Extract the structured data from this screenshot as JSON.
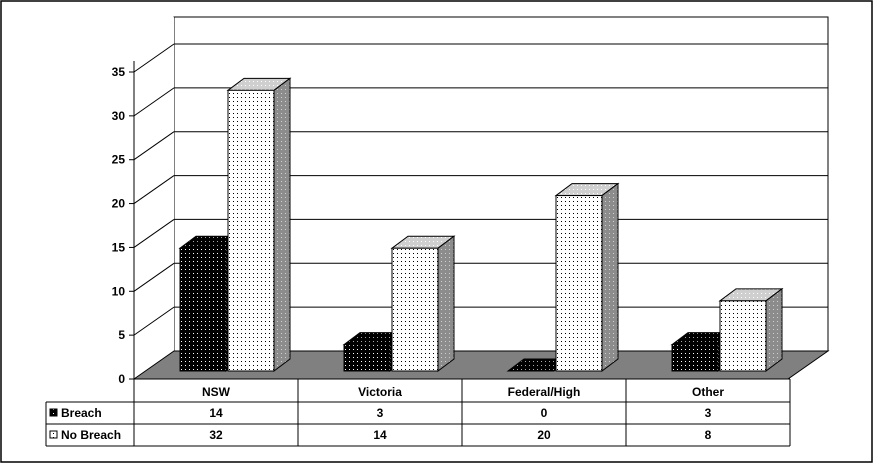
{
  "chart_data": {
    "type": "bar",
    "categories": [
      "NSW",
      "Victoria",
      "Federal/High",
      "Other"
    ],
    "series": [
      {
        "name": "Breach",
        "values": [
          14,
          3,
          0,
          3
        ]
      },
      {
        "name": "No Breach",
        "values": [
          32,
          14,
          20,
          8
        ]
      }
    ],
    "yticks": [
      "0",
      "5",
      "10",
      "15",
      "20",
      "25",
      "30",
      "35"
    ],
    "ylim": [
      0,
      35
    ],
    "grid": true,
    "style": "3d-clustered-bar-with-data-table",
    "colors": {
      "breach": "#000000",
      "no_breach": "#ffffff",
      "floor": "#808080",
      "frame": "#000000"
    }
  }
}
